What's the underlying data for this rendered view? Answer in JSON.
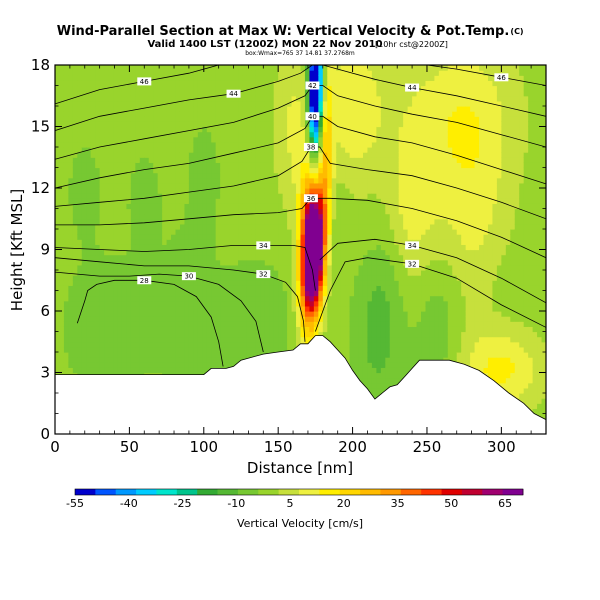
{
  "chart_data": {
    "type": "heatmap",
    "title": "Wind-Parallel Section at Max W: Vertical Velocity & Pot.Temp.",
    "title_mark": "(C)",
    "subtitle": "Valid 1400 LST (1200Z) MON 22 Nov 2010",
    "subtitle_suffix": "[10hr cst@2200Z]",
    "subtitle2": "box:Wmax=765 37 14.81 37.2768m",
    "xlabel": "Distance [nm]",
    "ylabel": "Height [Kft MSL]",
    "xlim": [
      0,
      330
    ],
    "ylim": [
      0,
      18
    ],
    "x_ticks": [
      0,
      50,
      100,
      150,
      200,
      250,
      300
    ],
    "y_ticks": [
      0,
      3,
      6,
      9,
      12,
      15,
      18
    ],
    "colorbar": {
      "label": "Vertical Velocity [cm/s]",
      "tick_labels": [
        "-55",
        "-40",
        "-25",
        "-10",
        "5",
        "20",
        "35",
        "50",
        "65"
      ],
      "tick_values": [
        -55,
        -40,
        -25,
        -10,
        5,
        20,
        35,
        50,
        65
      ],
      "range": [
        -55,
        70
      ],
      "colors": [
        "#0000cc",
        "#0055ff",
        "#0099ff",
        "#00ccff",
        "#00e5cc",
        "#00c48c",
        "#33aa33",
        "#55b834",
        "#77c832",
        "#99d42c",
        "#c7e03c",
        "#eef040",
        "#ffee00",
        "#ffd600",
        "#ffbb00",
        "#ff9900",
        "#ff6600",
        "#ff3300",
        "#e00000",
        "#c00030",
        "#a00070",
        "#800090"
      ]
    },
    "terrain": [
      [
        0,
        2.9
      ],
      [
        10,
        2.9
      ],
      [
        30,
        2.9
      ],
      [
        50,
        2.9
      ],
      [
        70,
        2.9
      ],
      [
        90,
        2.9
      ],
      [
        100,
        2.9
      ],
      [
        105,
        3.2
      ],
      [
        115,
        3.2
      ],
      [
        120,
        3.3
      ],
      [
        125,
        3.6
      ],
      [
        140,
        3.9
      ],
      [
        150,
        4.0
      ],
      [
        160,
        4.1
      ],
      [
        165,
        4.4
      ],
      [
        170,
        4.4
      ],
      [
        175,
        4.8
      ],
      [
        180,
        4.8
      ],
      [
        185,
        4.5
      ],
      [
        190,
        4.1
      ],
      [
        195,
        3.7
      ],
      [
        200,
        3.1
      ],
      [
        205,
        2.6
      ],
      [
        210,
        2.2
      ],
      [
        215,
        1.7
      ],
      [
        220,
        2.0
      ],
      [
        225,
        2.3
      ],
      [
        230,
        2.4
      ],
      [
        235,
        2.8
      ],
      [
        240,
        3.2
      ],
      [
        245,
        3.6
      ],
      [
        255,
        3.6
      ],
      [
        265,
        3.6
      ],
      [
        275,
        3.4
      ],
      [
        285,
        3.1
      ],
      [
        295,
        2.6
      ],
      [
        305,
        2.0
      ],
      [
        315,
        1.5
      ],
      [
        322,
        1.0
      ],
      [
        330,
        0.7
      ]
    ],
    "theta_contours": [
      {
        "value": 28,
        "label": "28",
        "points": [
          [
            15,
            5.4
          ],
          [
            20,
            6.5
          ],
          [
            22,
            7.0
          ],
          [
            28,
            7.3
          ],
          [
            40,
            7.5
          ],
          [
            60,
            7.5
          ],
          [
            80,
            7.3
          ],
          [
            95,
            6.7
          ],
          [
            105,
            5.7
          ],
          [
            110,
            4.5
          ],
          [
            113,
            3.3
          ]
        ]
      },
      {
        "value": 30,
        "label": "30",
        "points": [
          [
            0,
            7.9
          ],
          [
            30,
            7.7
          ],
          [
            50,
            7.7
          ],
          [
            70,
            7.8
          ],
          [
            90,
            7.7
          ],
          [
            110,
            7.3
          ],
          [
            125,
            6.5
          ],
          [
            135,
            5.5
          ],
          [
            140,
            4.0
          ]
        ]
      },
      {
        "value": 32,
        "label": "32",
        "points": [
          [
            0,
            8.6
          ],
          [
            30,
            8.4
          ],
          [
            60,
            8.2
          ],
          [
            90,
            8.2
          ],
          [
            120,
            8.0
          ],
          [
            140,
            7.8
          ],
          [
            155,
            7.4
          ],
          [
            163,
            6.7
          ],
          [
            167,
            5.5
          ],
          [
            168,
            4.5
          ]
        ]
      },
      {
        "value": 32,
        "label": "32",
        "points": [
          [
            175,
            5.0
          ],
          [
            185,
            7.0
          ],
          [
            195,
            8.4
          ],
          [
            210,
            8.6
          ],
          [
            240,
            8.3
          ],
          [
            270,
            7.6
          ],
          [
            300,
            6.3
          ],
          [
            330,
            5.2
          ]
        ]
      },
      {
        "value": 34,
        "label": "34",
        "points": [
          [
            0,
            9.1
          ],
          [
            30,
            9.0
          ],
          [
            60,
            8.9
          ],
          [
            90,
            9.0
          ],
          [
            120,
            9.2
          ],
          [
            140,
            9.2
          ],
          [
            160,
            9.2
          ],
          [
            168,
            9.1
          ],
          [
            173,
            8.0
          ],
          [
            175,
            7.0
          ]
        ]
      },
      {
        "value": 34,
        "label": "34",
        "points": [
          [
            178,
            8.5
          ],
          [
            190,
            9.3
          ],
          [
            215,
            9.5
          ],
          [
            240,
            9.2
          ],
          [
            270,
            8.6
          ],
          [
            300,
            7.6
          ],
          [
            330,
            6.4
          ]
        ]
      },
      {
        "value": 36,
        "label": "36",
        "points": [
          [
            0,
            10.2
          ],
          [
            30,
            10.2
          ],
          [
            60,
            10.3
          ],
          [
            90,
            10.5
          ],
          [
            120,
            10.7
          ],
          [
            150,
            10.8
          ],
          [
            166,
            11.0
          ],
          [
            172,
            11.5
          ],
          [
            178,
            11.5
          ],
          [
            185,
            11.5
          ],
          [
            210,
            11.4
          ],
          [
            240,
            11.0
          ],
          [
            270,
            10.4
          ],
          [
            300,
            9.6
          ],
          [
            330,
            8.6
          ]
        ]
      },
      {
        "value": 38,
        "label": "38",
        "points": [
          [
            0,
            11.1
          ],
          [
            30,
            11.3
          ],
          [
            60,
            11.5
          ],
          [
            90,
            11.8
          ],
          [
            120,
            12.1
          ],
          [
            150,
            12.6
          ],
          [
            166,
            13.3
          ],
          [
            172,
            14.0
          ],
          [
            178,
            14.0
          ],
          [
            185,
            13.2
          ],
          [
            210,
            12.9
          ],
          [
            240,
            12.6
          ],
          [
            270,
            12.0
          ],
          [
            300,
            11.3
          ],
          [
            330,
            10.5
          ]
        ]
      },
      {
        "value": 40,
        "label": "40",
        "points": [
          [
            0,
            12.0
          ],
          [
            30,
            12.5
          ],
          [
            60,
            12.9
          ],
          [
            90,
            13.2
          ],
          [
            120,
            13.7
          ],
          [
            150,
            14.2
          ],
          [
            168,
            14.9
          ],
          [
            173,
            15.5
          ],
          [
            180,
            15.5
          ],
          [
            190,
            15.0
          ],
          [
            215,
            14.5
          ],
          [
            240,
            14.2
          ],
          [
            270,
            13.6
          ],
          [
            300,
            12.9
          ],
          [
            330,
            12.2
          ]
        ]
      },
      {
        "value": 42,
        "label": "42",
        "points": [
          [
            0,
            13.4
          ],
          [
            30,
            14.0
          ],
          [
            60,
            14.4
          ],
          [
            90,
            14.8
          ],
          [
            120,
            15.2
          ],
          [
            150,
            15.9
          ],
          [
            168,
            16.5
          ],
          [
            173,
            17.0
          ],
          [
            180,
            17.0
          ],
          [
            190,
            16.5
          ],
          [
            215,
            16.0
          ],
          [
            240,
            15.6
          ],
          [
            270,
            15.2
          ],
          [
            300,
            14.6
          ],
          [
            330,
            14.0
          ]
        ]
      },
      {
        "value": 44,
        "label": "44",
        "points": [
          [
            0,
            14.8
          ],
          [
            30,
            15.5
          ],
          [
            60,
            15.9
          ],
          [
            90,
            16.3
          ],
          [
            120,
            16.6
          ],
          [
            150,
            17.2
          ],
          [
            165,
            17.6
          ],
          [
            173,
            18.0
          ]
        ]
      },
      {
        "value": 44,
        "label": "44",
        "points": [
          [
            180,
            18.0
          ],
          [
            190,
            17.8
          ],
          [
            215,
            17.3
          ],
          [
            240,
            16.9
          ],
          [
            270,
            16.5
          ],
          [
            300,
            16.0
          ],
          [
            330,
            15.5
          ]
        ]
      },
      {
        "value": 46,
        "label": "46",
        "points": [
          [
            0,
            16.1
          ],
          [
            30,
            16.8
          ],
          [
            60,
            17.2
          ],
          [
            90,
            17.6
          ],
          [
            110,
            18.0
          ]
        ]
      },
      {
        "value": 46,
        "label": "46",
        "points": [
          [
            250,
            18.0
          ],
          [
            270,
            17.8
          ],
          [
            300,
            17.4
          ],
          [
            330,
            17.0
          ]
        ]
      }
    ],
    "w_features": [
      {
        "x": 176,
        "y": 15.5,
        "x_half_width": 4,
        "y_half_height": 3.2,
        "w": -40
      },
      {
        "x": 175,
        "y": 17.0,
        "x_half_width": 3,
        "y_half_height": 1.8,
        "w": -55
      },
      {
        "x": 174,
        "y": 10.0,
        "x_half_width": 6,
        "y_half_height": 2.4,
        "w": 50
      },
      {
        "x": 174,
        "y": 9.0,
        "x_half_width": 4,
        "y_half_height": 1.6,
        "w": 62
      },
      {
        "x": 170,
        "y": 7.0,
        "x_half_width": 5,
        "y_half_height": 2.0,
        "w": 30
      },
      {
        "x": 181,
        "y": 13.5,
        "x_half_width": 4,
        "y_half_height": 3.0,
        "w": 30
      },
      {
        "x": 184,
        "y": 10.5,
        "x_half_width": 5,
        "y_half_height": 3.0,
        "w": -10
      },
      {
        "x": 36,
        "y": 5.2,
        "x_half_width": 20,
        "y_half_height": 2.2,
        "w": -8
      },
      {
        "x": 88,
        "y": 5.8,
        "x_half_width": 12,
        "y_half_height": 2.4,
        "w": -8
      },
      {
        "x": 135,
        "y": 5.5,
        "x_half_width": 18,
        "y_half_height": 2.0,
        "w": -8
      },
      {
        "x": 100,
        "y": 12.5,
        "x_half_width": 10,
        "y_half_height": 2.5,
        "w": -5
      },
      {
        "x": 20,
        "y": 12.0,
        "x_half_width": 10,
        "y_half_height": 2.0,
        "w": -5
      },
      {
        "x": 60,
        "y": 11.5,
        "x_half_width": 10,
        "y_half_height": 2.0,
        "w": -5
      },
      {
        "x": 225,
        "y": 9.0,
        "x_half_width": 10,
        "y_half_height": 4.0,
        "w": -10
      },
      {
        "x": 215,
        "y": 5.0,
        "x_half_width": 10,
        "y_half_height": 2.5,
        "w": -10
      },
      {
        "x": 258,
        "y": 5.5,
        "x_half_width": 12,
        "y_half_height": 3.0,
        "w": -10
      },
      {
        "x": 300,
        "y": 6.5,
        "x_half_width": 15,
        "y_half_height": 2.5,
        "w": -5
      },
      {
        "x": 200,
        "y": 16.0,
        "x_half_width": 15,
        "y_half_height": 2.5,
        "w": 12
      },
      {
        "x": 235,
        "y": 11.0,
        "x_half_width": 15,
        "y_half_height": 3.0,
        "w": 12
      },
      {
        "x": 280,
        "y": 11.0,
        "x_half_width": 20,
        "y_half_height": 4.0,
        "w": 10
      },
      {
        "x": 300,
        "y": 3.2,
        "x_half_width": 20,
        "y_half_height": 1.5,
        "w": 15
      },
      {
        "x": 160,
        "y": 15.0,
        "x_half_width": 10,
        "y_half_height": 3.0,
        "w": 8
      },
      {
        "x": 270,
        "y": 16.0,
        "x_half_width": 30,
        "y_half_height": 2.5,
        "w": 8
      }
    ],
    "w_background": -2,
    "grid": false,
    "legend": "bottom"
  }
}
